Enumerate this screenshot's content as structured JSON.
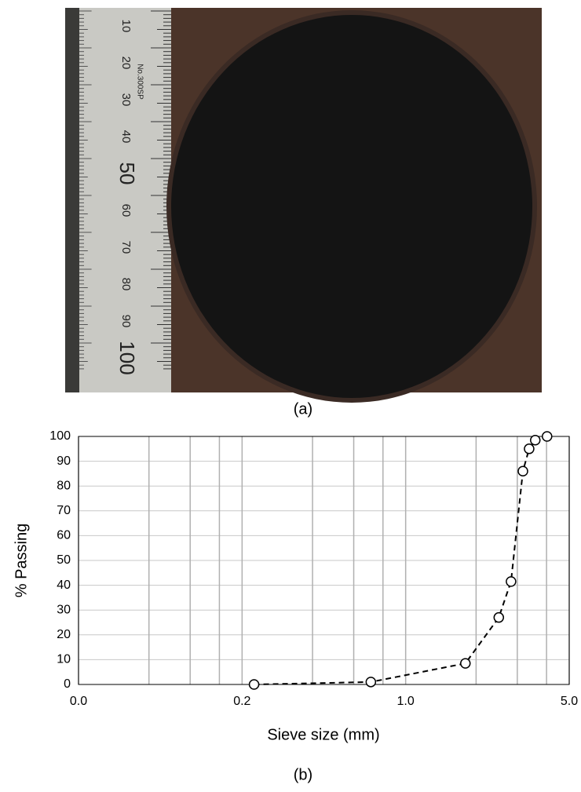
{
  "photo": {
    "caption": "(a)",
    "ruler_labels": [
      "10",
      "20",
      "30",
      "40",
      "50",
      "60",
      "70",
      "80",
      "90",
      "100"
    ],
    "ruler_brand": "No.300SP"
  },
  "chart_data": {
    "type": "scatter",
    "caption": "(b)",
    "x_label": "Sieve size (mm)",
    "y_label": "% Passing",
    "x": [
      0.225,
      0.71,
      1.8,
      2.5,
      2.82,
      3.17,
      3.37,
      3.58,
      4.02
    ],
    "values": [
      0,
      1,
      8.5,
      27,
      41.5,
      86,
      95,
      98.5,
      100
    ],
    "color": "#000000",
    "line": "dashed",
    "marker": "open-circle",
    "xlog": true,
    "xlim": [
      0.04,
      5.0
    ],
    "xticks": [
      {
        "value": 0.04,
        "label": "0.0"
      },
      0.2,
      {
        "value": 1.0,
        "label": "1.0"
      },
      {
        "value": 5.0,
        "label": "5.0"
      }
    ],
    "xgrid": [
      0.08,
      0.12,
      0.16,
      0.4,
      0.6,
      0.8,
      2,
      3,
      4
    ],
    "ylim": [
      0,
      100
    ],
    "yticks": [
      0,
      10,
      20,
      30,
      40,
      50,
      60,
      70,
      80,
      90,
      100
    ],
    "grid": true
  }
}
